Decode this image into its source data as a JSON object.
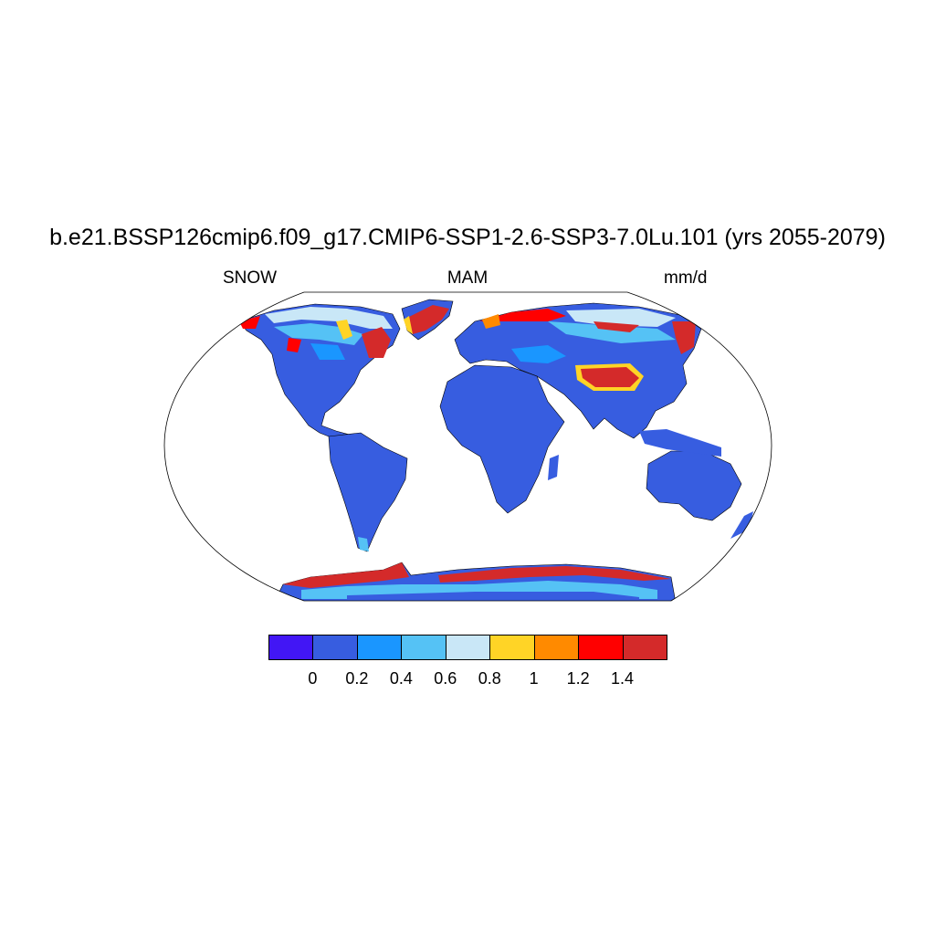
{
  "title": "b.e21.BSSP126cmip6.f09_g17.CMIP6-SSP1-2.6-SSP3-7.0Lu.101 (yrs 2055-2079)",
  "subtitle_left": "SNOW",
  "subtitle_center": "MAM",
  "subtitle_right": "mm/d",
  "colorbar": {
    "colors": [
      "#4216f5",
      "#375de0",
      "#1a96ff",
      "#55c2f5",
      "#c9e7f7",
      "#ffd426",
      "#ff8a00",
      "#ff0000",
      "#d42a2a"
    ],
    "labels": [
      "0",
      "0.2",
      "0.4",
      "0.6",
      "0.8",
      "1",
      "1.2",
      "1.4"
    ]
  },
  "map_colors": {
    "land_base": "#375de0",
    "ocean": "#ffffff",
    "outline": "#000000"
  }
}
